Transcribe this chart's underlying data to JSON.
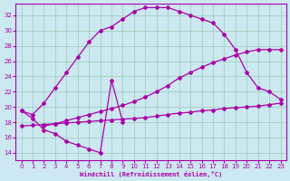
{
  "xlabel": "Windchill (Refroidissement éolien,°C)",
  "bg_color": "#cce8f0",
  "grid_color": "#99ccbb",
  "line_color": "#aa00aa",
  "xlim": [
    -0.5,
    23.5
  ],
  "ylim": [
    13,
    33.5
  ],
  "yticks": [
    14,
    16,
    18,
    20,
    22,
    24,
    26,
    28,
    30,
    32
  ],
  "xticks": [
    0,
    1,
    2,
    3,
    4,
    5,
    6,
    7,
    8,
    9,
    10,
    11,
    12,
    13,
    14,
    15,
    16,
    17,
    18,
    19,
    20,
    21,
    22,
    23
  ],
  "curve_peak_x": [
    0,
    1,
    2,
    3,
    4,
    5,
    6,
    7,
    8,
    9,
    10,
    11,
    12,
    13,
    14,
    15,
    16,
    17,
    18,
    19,
    20,
    21,
    22,
    23
  ],
  "curve_peak_y": [
    19.5,
    19.0,
    20.5,
    22.5,
    24.5,
    26.5,
    28.5,
    30.0,
    30.5,
    31.5,
    32.5,
    33.0,
    33.0,
    33.0,
    32.5,
    32.0,
    31.5,
    31.0,
    29.5,
    27.5,
    24.5,
    22.5,
    22.0,
    21.0
  ],
  "curve_dip_x": [
    0,
    1,
    2,
    3,
    4,
    5,
    6,
    7,
    8,
    9
  ],
  "curve_dip_y": [
    19.5,
    18.5,
    17.0,
    16.5,
    15.5,
    15.0,
    14.5,
    14.0,
    23.5,
    18.0
  ],
  "line_flat_x": [
    0,
    1,
    2,
    3,
    4,
    5,
    6,
    7,
    8,
    9,
    10,
    11,
    12,
    13,
    14,
    15,
    16,
    17,
    18,
    19,
    20,
    21,
    22,
    23
  ],
  "line_flat_y": [
    17.5,
    17.6,
    17.7,
    17.8,
    17.9,
    18.0,
    18.1,
    18.2,
    18.3,
    18.4,
    18.5,
    18.6,
    18.8,
    19.0,
    19.2,
    19.3,
    19.5,
    19.6,
    19.8,
    19.9,
    20.0,
    20.1,
    20.3,
    20.5
  ],
  "line_steep_x": [
    2,
    3,
    4,
    5,
    6,
    7,
    8,
    9,
    10,
    11,
    12,
    13,
    14,
    15,
    16,
    17,
    18,
    19,
    20,
    21,
    22,
    23
  ],
  "line_steep_y": [
    17.5,
    17.8,
    18.2,
    18.6,
    19.0,
    19.4,
    19.8,
    20.2,
    20.7,
    21.3,
    22.0,
    22.8,
    23.8,
    24.5,
    25.2,
    25.8,
    26.3,
    26.8,
    27.2,
    27.5,
    27.5,
    27.5
  ]
}
